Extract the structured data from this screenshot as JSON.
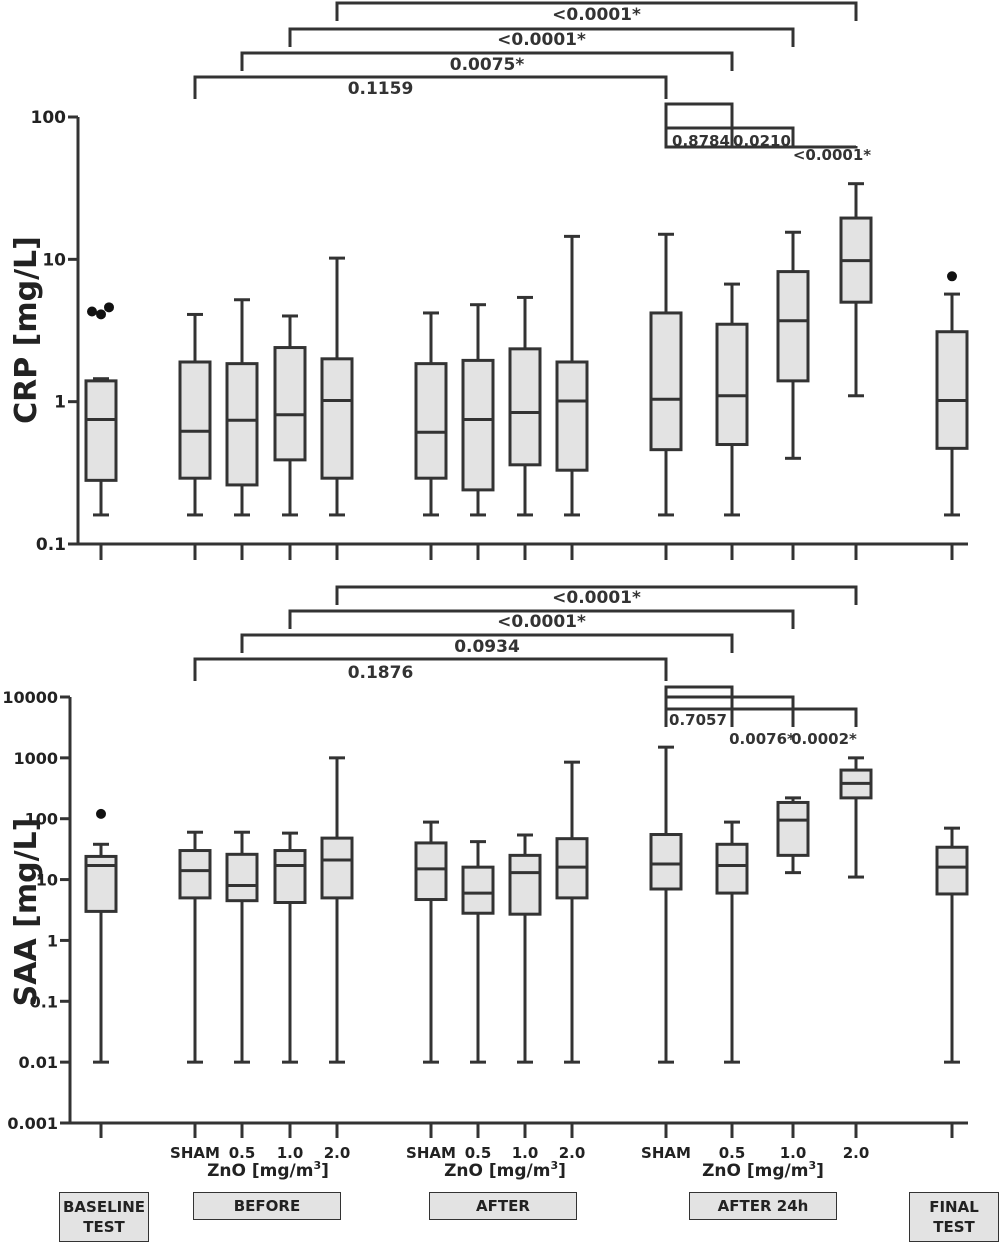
{
  "group_labels": [
    "BASELINE\nTEST",
    "BEFORE",
    "AFTER",
    "AFTER 24h",
    "FINAL\nTEST"
  ],
  "chart_data": [
    {
      "type": "box",
      "ylabel": "CRP [mg/L]",
      "yscale": "log",
      "ylim": [
        0.1,
        100
      ],
      "yticks": [
        "0.1",
        "1",
        "10",
        "100"
      ],
      "boxes": [
        {
          "group": "BASELINE TEST",
          "label": "",
          "min": 0.16,
          "q1": 0.28,
          "median": 0.75,
          "q3": 1.4,
          "max": 1.45,
          "outliers": [
            4.3,
            4.6,
            4.6
          ]
        },
        {
          "group": "BEFORE",
          "label": "SHAM",
          "min": 0.16,
          "q1": 0.29,
          "median": 0.62,
          "q3": 1.9,
          "max": 4.1,
          "outliers": []
        },
        {
          "group": "BEFORE",
          "label": "0.5",
          "min": 0.16,
          "q1": 0.26,
          "median": 0.74,
          "q3": 1.85,
          "max": 5.2,
          "outliers": []
        },
        {
          "group": "BEFORE",
          "label": "1.0",
          "min": 0.16,
          "q1": 0.39,
          "median": 0.81,
          "q3": 2.4,
          "max": 4.0,
          "outliers": []
        },
        {
          "group": "BEFORE",
          "label": "2.0",
          "min": 0.16,
          "q1": 0.29,
          "median": 1.02,
          "q3": 2.0,
          "max": 10.2,
          "outliers": []
        },
        {
          "group": "AFTER",
          "label": "SHAM",
          "min": 0.16,
          "q1": 0.29,
          "median": 0.61,
          "q3": 1.85,
          "max": 4.2,
          "outliers": []
        },
        {
          "group": "AFTER",
          "label": "0.5",
          "min": 0.16,
          "q1": 0.24,
          "median": 0.75,
          "q3": 1.95,
          "max": 4.8,
          "outliers": []
        },
        {
          "group": "AFTER",
          "label": "1.0",
          "min": 0.16,
          "q1": 0.36,
          "median": 0.84,
          "q3": 2.35,
          "max": 5.4,
          "outliers": []
        },
        {
          "group": "AFTER",
          "label": "2.0",
          "min": 0.16,
          "q1": 0.33,
          "median": 1.01,
          "q3": 1.9,
          "max": 14.5,
          "outliers": []
        },
        {
          "group": "AFTER 24h",
          "label": "SHAM",
          "min": 0.16,
          "q1": 0.46,
          "median": 1.04,
          "q3": 4.2,
          "max": 15.0,
          "outliers": []
        },
        {
          "group": "AFTER 24h",
          "label": "0.5",
          "min": 0.16,
          "q1": 0.5,
          "median": 1.1,
          "q3": 3.5,
          "max": 6.7,
          "outliers": []
        },
        {
          "group": "AFTER 24h",
          "label": "1.0",
          "min": 0.4,
          "q1": 1.4,
          "median": 3.7,
          "q3": 8.2,
          "max": 15.5,
          "outliers": []
        },
        {
          "group": "AFTER 24h",
          "label": "2.0",
          "min": 1.1,
          "q1": 5.0,
          "median": 9.8,
          "q3": 19.5,
          "max": 34.0,
          "outliers": []
        },
        {
          "group": "FINAL TEST",
          "label": "",
          "min": 0.16,
          "q1": 0.47,
          "median": 1.02,
          "q3": 3.1,
          "max": 5.7,
          "outliers": [
            7.6
          ]
        }
      ],
      "brackets_top": [
        {
          "from": 5,
          "to": 13,
          "label": "<0.0001*"
        },
        {
          "from": 4,
          "to": 12,
          "label": "<0.0001*"
        },
        {
          "from": 3,
          "to": 11,
          "label": "0.0075*"
        },
        {
          "from": 2,
          "to": 10,
          "label": "0.1159"
        }
      ],
      "brackets_right": [
        {
          "to": 11,
          "label": "0.8784"
        },
        {
          "to": 12,
          "label": "0.0210"
        },
        {
          "to": 13,
          "label": "<0.0001*"
        }
      ]
    },
    {
      "type": "box",
      "ylabel": "SAA [mg/L]",
      "yscale": "log",
      "ylim": [
        0.001,
        10000
      ],
      "yticks": [
        "0.001",
        "0.01",
        "0.1",
        "1",
        "10",
        "100",
        "1000",
        "10000"
      ],
      "boxes": [
        {
          "group": "BASELINE TEST",
          "label": "",
          "min": 0.01,
          "q1": 3.0,
          "median": 17,
          "q3": 24,
          "max": 38,
          "outliers": [
            120
          ]
        },
        {
          "group": "BEFORE",
          "label": "SHAM",
          "min": 0.01,
          "q1": 5.0,
          "median": 14,
          "q3": 30,
          "max": 60,
          "outliers": []
        },
        {
          "group": "BEFORE",
          "label": "0.5",
          "min": 0.01,
          "q1": 4.5,
          "median": 8,
          "q3": 26,
          "max": 60,
          "outliers": []
        },
        {
          "group": "BEFORE",
          "label": "1.0",
          "min": 0.01,
          "q1": 4.2,
          "median": 17,
          "q3": 30,
          "max": 58,
          "outliers": []
        },
        {
          "group": "BEFORE",
          "label": "2.0",
          "min": 0.01,
          "q1": 5.0,
          "median": 21,
          "q3": 48,
          "max": 1000,
          "outliers": []
        },
        {
          "group": "AFTER",
          "label": "SHAM",
          "min": 0.01,
          "q1": 4.7,
          "median": 15,
          "q3": 40,
          "max": 88,
          "outliers": []
        },
        {
          "group": "AFTER",
          "label": "0.5",
          "min": 0.01,
          "q1": 2.8,
          "median": 6,
          "q3": 16,
          "max": 42,
          "outliers": []
        },
        {
          "group": "AFTER",
          "label": "1.0",
          "min": 0.01,
          "q1": 2.7,
          "median": 13,
          "q3": 25,
          "max": 54,
          "outliers": []
        },
        {
          "group": "AFTER",
          "label": "2.0",
          "min": 0.01,
          "q1": 5.0,
          "median": 16,
          "q3": 47,
          "max": 850,
          "outliers": []
        },
        {
          "group": "AFTER 24h",
          "label": "SHAM",
          "min": 0.01,
          "q1": 7.0,
          "median": 18,
          "q3": 55,
          "max": 1500,
          "outliers": []
        },
        {
          "group": "AFTER 24h",
          "label": "0.5",
          "min": 0.01,
          "q1": 6.0,
          "median": 17,
          "q3": 38,
          "max": 88,
          "outliers": []
        },
        {
          "group": "AFTER 24h",
          "label": "1.0",
          "min": 13,
          "q1": 25,
          "median": 95,
          "q3": 185,
          "max": 220,
          "outliers": []
        },
        {
          "group": "AFTER 24h",
          "label": "2.0",
          "min": 11,
          "q1": 220,
          "median": 380,
          "q3": 630,
          "max": 1000,
          "outliers": []
        },
        {
          "group": "FINAL TEST",
          "label": "",
          "min": 0.01,
          "q1": 5.8,
          "median": 16,
          "q3": 34,
          "max": 70,
          "outliers": []
        }
      ],
      "brackets_top": [
        {
          "from": 5,
          "to": 13,
          "label": "<0.0001*"
        },
        {
          "from": 4,
          "to": 12,
          "label": "<0.0001*"
        },
        {
          "from": 3,
          "to": 11,
          "label": "0.0934"
        },
        {
          "from": 2,
          "to": 10,
          "label": "0.1876"
        }
      ],
      "brackets_right": [
        {
          "to": 11,
          "label": "0.7057"
        },
        {
          "to": 12,
          "label": "0.0076*"
        },
        {
          "to": 13,
          "label": "0.0002*"
        }
      ]
    }
  ],
  "x_tick_labels": [
    "",
    "SHAM",
    "0.5",
    "1.0",
    "2.0",
    "SHAM",
    "0.5",
    "1.0",
    "2.0",
    "SHAM",
    "0.5",
    "1.0",
    "2.0",
    ""
  ],
  "x_axis_title": "ZnO [mg/m",
  "x_axis_title_sup": "3",
  "x_axis_title_end": "]"
}
